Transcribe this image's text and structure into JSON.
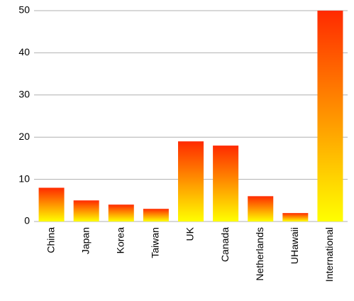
{
  "chart_data": {
    "type": "bar",
    "categories": [
      "China",
      "Japan",
      "Korea",
      "Taiwan",
      "UK",
      "Canada",
      "Netherlands",
      "UHawaii",
      "International"
    ],
    "values": [
      8,
      5,
      4,
      3,
      19,
      18,
      6,
      2,
      50
    ],
    "color_top": "#ff2a00",
    "color_bottom": "#ffff00",
    "ylim": [
      0,
      50
    ],
    "yticks": [
      0,
      10,
      20,
      30,
      40,
      50
    ],
    "grid": true
  }
}
